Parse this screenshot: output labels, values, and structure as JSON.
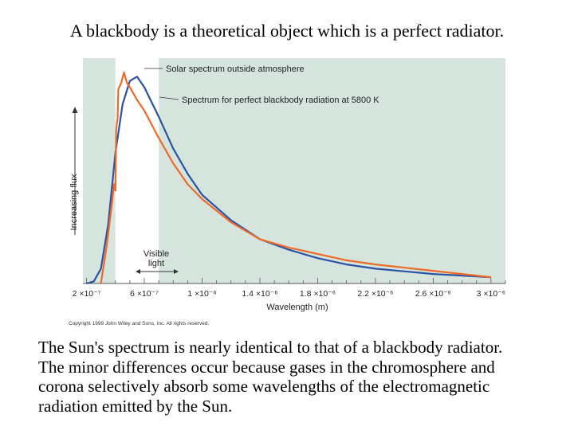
{
  "slide": {
    "title": "A blackbody is a theoretical object which is a perfect radiator.",
    "caption_lines": [
      "The Sun's spectrum is nearly identical to that of a blackbody radiator.",
      "The minor differences occur because gases in the chromosphere and",
      "corona selectively absorb some wavelengths of the electromagnetic",
      "radiation emitted by the Sun."
    ]
  },
  "figure": {
    "copyright": "Copyright 1999 John Wiley and Sons, Inc. All rights reserved.",
    "visible_label_line1": "Visible",
    "visible_label_line2": "light"
  },
  "colors": {
    "plot_background": "#d5e5de",
    "visible_band": "#ffffff",
    "solar_curve": "#ee6a26",
    "blackbody_curve": "#2a53a3"
  },
  "chart_data": {
    "type": "line",
    "title": "",
    "xlabel": "Wavelength (m)",
    "ylabel": "Increasing flux",
    "xlim": [
      1.75e-07,
      3.1e-06
    ],
    "ylim": [
      0,
      1.0
    ],
    "x_ticks": [
      2e-07,
      6e-07,
      1e-06,
      1.4e-06,
      1.8e-06,
      2.2e-06,
      2.6e-06,
      3e-06
    ],
    "x_tick_labels": [
      "2 ×10⁻⁷",
      "6 ×10⁻⁷",
      "1 ×10⁻⁶",
      "1.4 ×10⁻⁶",
      "1.8 ×10⁻⁶",
      "2.2 ×10⁻⁶",
      "2.6 ×10⁻⁶",
      "3 ×10⁻⁶"
    ],
    "visible_band": [
      4e-07,
      7e-07
    ],
    "grid": false,
    "series": [
      {
        "name": "Spectrum for perfect blackbody radiation at 5800 K",
        "x": [
          2e-07,
          2.5e-07,
          3e-07,
          3.5e-07,
          4e-07,
          4.5e-07,
          5e-07,
          5.5e-07,
          6e-07,
          7e-07,
          8e-07,
          9e-07,
          1e-06,
          1.2e-06,
          1.4e-06,
          1.6e-06,
          1.8e-06,
          2e-06,
          2.2e-06,
          2.6e-06,
          3e-06
        ],
        "y": [
          0.0,
          0.01,
          0.07,
          0.28,
          0.62,
          0.85,
          0.96,
          0.98,
          0.93,
          0.79,
          0.64,
          0.52,
          0.42,
          0.3,
          0.21,
          0.16,
          0.12,
          0.09,
          0.07,
          0.045,
          0.03
        ]
      },
      {
        "name": "Solar spectrum outside atmosphere",
        "x": [
          3e-07,
          3.4e-07,
          3.8e-07,
          3.9e-07,
          4e-07,
          4.05e-07,
          4.1e-07,
          4.15e-07,
          4.2e-07,
          4.4e-07,
          4.6e-07,
          4.8e-07,
          5e-07,
          5.5e-07,
          6e-07,
          7e-07,
          8e-07,
          9e-07,
          1e-06,
          1.2e-06,
          1.4e-06,
          1.6e-06,
          1.8e-06,
          2e-06,
          2.2e-06,
          2.6e-06,
          3e-06
        ],
        "y": [
          0.0,
          0.18,
          0.4,
          0.47,
          0.44,
          0.72,
          0.76,
          0.78,
          0.92,
          0.95,
          1.0,
          0.95,
          0.93,
          0.87,
          0.82,
          0.69,
          0.57,
          0.47,
          0.4,
          0.29,
          0.21,
          0.17,
          0.14,
          0.11,
          0.09,
          0.06,
          0.03
        ]
      }
    ]
  }
}
